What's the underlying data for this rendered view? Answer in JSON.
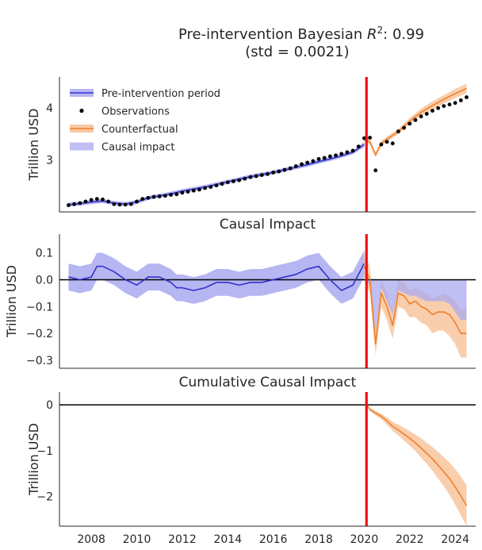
{
  "figure": {
    "suptitle_prefix": "Pre-intervention Bayesian ",
    "suptitle_r": "R",
    "suptitle_sup": "2",
    "suptitle_suffix": ": 0.99",
    "suptitle_line2": "(std = 0.0021)"
  },
  "colors": {
    "fit": "#3333cc",
    "fit_band": "#a9a9f0",
    "counterfactual": "#f07f2a",
    "counterfactual_band": "#f8c9a4",
    "observations": "#000000",
    "intervention": "#ee1111",
    "zero_line": "#000000",
    "axis": "#262626"
  },
  "chart_data": [
    {
      "type": "line",
      "title": "",
      "ylabel": "Trillion USD",
      "ylim": [
        2.0,
        4.6
      ],
      "yticks": [
        3,
        4
      ],
      "xlim": [
        2006.6,
        2024.9
      ],
      "xticks": [
        2008,
        2010,
        2012,
        2014,
        2016,
        2018,
        2020,
        2022,
        2024
      ],
      "intervention_x": 2020.1,
      "legend": {
        "placement": "top-left",
        "entries": [
          "Pre-intervention period",
          "Observations",
          "Counterfactual",
          "Causal impact"
        ]
      },
      "observations": {
        "x": [
          2007.0,
          2007.25,
          2007.5,
          2007.75,
          2008.0,
          2008.25,
          2008.5,
          2008.75,
          2009.0,
          2009.25,
          2009.5,
          2009.75,
          2010.0,
          2010.25,
          2010.5,
          2010.75,
          2011.0,
          2011.25,
          2011.5,
          2011.75,
          2012.0,
          2012.25,
          2012.5,
          2012.75,
          2013.0,
          2013.25,
          2013.5,
          2013.75,
          2014.0,
          2014.25,
          2014.5,
          2014.75,
          2015.0,
          2015.25,
          2015.5,
          2015.75,
          2016.0,
          2016.25,
          2016.5,
          2016.75,
          2017.0,
          2017.25,
          2017.5,
          2017.75,
          2018.0,
          2018.25,
          2018.5,
          2018.75,
          2019.0,
          2019.25,
          2019.5,
          2019.75,
          2020.0,
          2020.25,
          2020.5,
          2020.75,
          2021.0,
          2021.25,
          2021.5,
          2021.75,
          2022.0,
          2022.25,
          2022.5,
          2022.75,
          2023.0,
          2023.25,
          2023.5,
          2023.75,
          2024.0,
          2024.25,
          2024.5
        ],
        "y": [
          2.13,
          2.15,
          2.17,
          2.2,
          2.23,
          2.25,
          2.24,
          2.2,
          2.15,
          2.14,
          2.14,
          2.15,
          2.2,
          2.25,
          2.27,
          2.29,
          2.3,
          2.31,
          2.33,
          2.34,
          2.37,
          2.39,
          2.41,
          2.43,
          2.46,
          2.48,
          2.51,
          2.54,
          2.57,
          2.59,
          2.61,
          2.64,
          2.67,
          2.69,
          2.71,
          2.73,
          2.76,
          2.78,
          2.81,
          2.84,
          2.88,
          2.92,
          2.95,
          2.98,
          3.02,
          3.04,
          3.07,
          3.09,
          3.12,
          3.15,
          3.18,
          3.26,
          3.42,
          3.43,
          2.8,
          3.3,
          3.35,
          3.32,
          3.55,
          3.62,
          3.7,
          3.77,
          3.84,
          3.89,
          3.95,
          4.0,
          4.04,
          4.07,
          4.1,
          4.15,
          4.21
        ]
      },
      "series": [
        {
          "name": "Pre-intervention period",
          "role": "fit",
          "x": [
            2007.0,
            2007.5,
            2008.0,
            2008.5,
            2009.0,
            2009.5,
            2010.0,
            2010.5,
            2011.0,
            2011.5,
            2012.0,
            2012.5,
            2013.0,
            2013.5,
            2014.0,
            2014.5,
            2015.0,
            2015.5,
            2016.0,
            2016.5,
            2017.0,
            2017.5,
            2018.0,
            2018.5,
            2019.0,
            2019.5,
            2020.0
          ],
          "y": [
            2.14,
            2.16,
            2.19,
            2.21,
            2.17,
            2.15,
            2.19,
            2.27,
            2.31,
            2.35,
            2.4,
            2.44,
            2.48,
            2.53,
            2.58,
            2.63,
            2.68,
            2.72,
            2.76,
            2.81,
            2.86,
            2.91,
            2.97,
            3.02,
            3.08,
            3.15,
            3.3
          ],
          "lower": [
            2.1,
            2.12,
            2.15,
            2.17,
            2.13,
            2.11,
            2.15,
            2.23,
            2.27,
            2.31,
            2.36,
            2.4,
            2.44,
            2.49,
            2.54,
            2.59,
            2.64,
            2.68,
            2.72,
            2.77,
            2.82,
            2.87,
            2.93,
            2.98,
            3.04,
            3.11,
            3.25
          ],
          "upper": [
            2.18,
            2.2,
            2.23,
            2.25,
            2.21,
            2.19,
            2.23,
            2.31,
            2.35,
            2.39,
            2.44,
            2.48,
            2.52,
            2.57,
            2.62,
            2.67,
            2.72,
            2.76,
            2.8,
            2.85,
            2.9,
            2.95,
            3.01,
            3.06,
            3.12,
            3.19,
            3.35
          ]
        },
        {
          "name": "Counterfactual",
          "role": "counterfactual",
          "x": [
            2020.0,
            2020.25,
            2020.5,
            2020.75,
            2021.0,
            2021.5,
            2022.0,
            2022.5,
            2023.0,
            2023.5,
            2024.0,
            2024.5
          ],
          "y": [
            3.4,
            3.35,
            3.1,
            3.32,
            3.4,
            3.55,
            3.75,
            3.92,
            4.05,
            4.17,
            4.28,
            4.38
          ],
          "lower": [
            3.35,
            3.3,
            3.05,
            3.27,
            3.35,
            3.5,
            3.69,
            3.85,
            3.97,
            4.09,
            4.19,
            4.29
          ],
          "upper": [
            3.45,
            3.4,
            3.15,
            3.37,
            3.45,
            3.6,
            3.81,
            3.99,
            4.13,
            4.25,
            4.37,
            4.47
          ]
        }
      ]
    },
    {
      "type": "line",
      "title": "Causal Impact",
      "ylabel": "Trillion USD",
      "ylim": [
        -0.33,
        0.17
      ],
      "yticks": [
        -0.3,
        -0.2,
        -0.1,
        0.0,
        0.1
      ],
      "xlim": [
        2006.6,
        2024.9
      ],
      "intervention_x": 2020.1,
      "zero_line": true,
      "series": [
        {
          "role": "fit",
          "x": [
            2007.0,
            2007.5,
            2008.0,
            2008.25,
            2008.5,
            2009.0,
            2009.5,
            2010.0,
            2010.5,
            2011.0,
            2011.5,
            2011.75,
            2012.0,
            2012.5,
            2013.0,
            2013.5,
            2014.0,
            2014.5,
            2015.0,
            2015.5,
            2016.0,
            2016.5,
            2017.0,
            2017.5,
            2018.0,
            2018.5,
            2019.0,
            2019.5,
            2020.0
          ],
          "y": [
            0.01,
            0.0,
            0.01,
            0.05,
            0.05,
            0.03,
            0.0,
            -0.02,
            0.01,
            0.01,
            -0.01,
            -0.03,
            -0.03,
            -0.04,
            -0.03,
            -0.01,
            -0.01,
            -0.02,
            -0.01,
            -0.01,
            0.0,
            0.01,
            0.02,
            0.04,
            0.05,
            0.0,
            -0.04,
            -0.02,
            0.06
          ],
          "lower": [
            -0.04,
            -0.05,
            -0.04,
            0.0,
            0.0,
            -0.02,
            -0.05,
            -0.07,
            -0.04,
            -0.04,
            -0.06,
            -0.08,
            -0.08,
            -0.09,
            -0.08,
            -0.06,
            -0.06,
            -0.07,
            -0.06,
            -0.06,
            -0.05,
            -0.04,
            -0.03,
            -0.01,
            0.0,
            -0.05,
            -0.09,
            -0.07,
            0.01
          ],
          "upper": [
            0.06,
            0.05,
            0.06,
            0.1,
            0.1,
            0.08,
            0.05,
            0.03,
            0.06,
            0.06,
            0.04,
            0.02,
            0.02,
            0.01,
            0.02,
            0.04,
            0.04,
            0.03,
            0.04,
            0.04,
            0.05,
            0.06,
            0.07,
            0.09,
            0.1,
            0.05,
            0.01,
            0.03,
            0.11
          ]
        },
        {
          "role": "counterfactual",
          "x": [
            2020.0,
            2020.25,
            2020.5,
            2020.75,
            2021.0,
            2021.25,
            2021.5,
            2021.75,
            2022.0,
            2022.25,
            2022.5,
            2022.75,
            2023.0,
            2023.25,
            2023.5,
            2023.75,
            2024.0,
            2024.25,
            2024.5
          ],
          "y": [
            0.05,
            0.0,
            -0.24,
            -0.05,
            -0.1,
            -0.17,
            -0.05,
            -0.06,
            -0.09,
            -0.08,
            -0.1,
            -0.11,
            -0.13,
            -0.12,
            -0.12,
            -0.13,
            -0.16,
            -0.2,
            -0.2
          ],
          "lower": [
            0.0,
            -0.05,
            -0.28,
            -0.1,
            -0.15,
            -0.22,
            -0.1,
            -0.11,
            -0.14,
            -0.14,
            -0.16,
            -0.17,
            -0.2,
            -0.19,
            -0.19,
            -0.21,
            -0.24,
            -0.29,
            -0.29
          ],
          "upper": [
            0.1,
            0.05,
            -0.2,
            0.0,
            -0.05,
            -0.12,
            0.0,
            -0.01,
            -0.04,
            -0.03,
            -0.04,
            -0.05,
            -0.07,
            -0.06,
            -0.05,
            -0.06,
            -0.08,
            -0.11,
            -0.11
          ]
        }
      ],
      "impact_band": {
        "x": [
          2020.0,
          2020.25,
          2020.5,
          2020.75,
          2021.0,
          2021.25,
          2021.5,
          2021.75,
          2022.0,
          2022.25,
          2022.5,
          2022.75,
          2023.0,
          2023.25,
          2023.5,
          2023.75,
          2024.0,
          2024.25,
          2024.5
        ],
        "lower": [
          0.0,
          -0.02,
          -0.2,
          -0.03,
          -0.08,
          -0.13,
          -0.04,
          -0.05,
          -0.06,
          -0.06,
          -0.07,
          -0.08,
          -0.08,
          -0.08,
          -0.08,
          -0.09,
          -0.12,
          -0.15,
          -0.15
        ],
        "upper": [
          0.0,
          0.0,
          0.0,
          0.0,
          0.0,
          0.0,
          0.0,
          0.0,
          0.0,
          0.0,
          0.0,
          0.0,
          0.0,
          0.0,
          0.0,
          0.0,
          0.0,
          0.0,
          0.0
        ]
      }
    },
    {
      "type": "line",
      "title": "Cumulative Causal Impact",
      "ylabel": "Trillion USD",
      "ylim": [
        -2.65,
        0.28
      ],
      "yticks": [
        -2,
        -1,
        0
      ],
      "xlim": [
        2006.6,
        2024.9
      ],
      "xticks": [
        2008,
        2010,
        2012,
        2014,
        2016,
        2018,
        2020,
        2022,
        2024
      ],
      "intervention_x": 2020.1,
      "zero_line": true,
      "series": [
        {
          "role": "counterfactual",
          "x": [
            2020.1,
            2020.25,
            2020.5,
            2020.75,
            2021.0,
            2021.25,
            2021.5,
            2021.75,
            2022.0,
            2022.25,
            2022.5,
            2022.75,
            2023.0,
            2023.25,
            2023.5,
            2023.75,
            2024.0,
            2024.25,
            2024.5
          ],
          "y": [
            0.0,
            -0.1,
            -0.18,
            -0.25,
            -0.35,
            -0.47,
            -0.55,
            -0.64,
            -0.73,
            -0.83,
            -0.94,
            -1.06,
            -1.18,
            -1.32,
            -1.46,
            -1.61,
            -1.79,
            -1.99,
            -2.2
          ],
          "lower": [
            0.0,
            -0.13,
            -0.23,
            -0.31,
            -0.43,
            -0.57,
            -0.67,
            -0.78,
            -0.89,
            -1.01,
            -1.15,
            -1.29,
            -1.44,
            -1.61,
            -1.78,
            -1.96,
            -2.18,
            -2.41,
            -2.65
          ],
          "upper": [
            0.0,
            -0.07,
            -0.13,
            -0.19,
            -0.27,
            -0.37,
            -0.43,
            -0.5,
            -0.57,
            -0.65,
            -0.73,
            -0.83,
            -0.92,
            -1.03,
            -1.14,
            -1.26,
            -1.4,
            -1.57,
            -1.75
          ]
        }
      ]
    }
  ]
}
